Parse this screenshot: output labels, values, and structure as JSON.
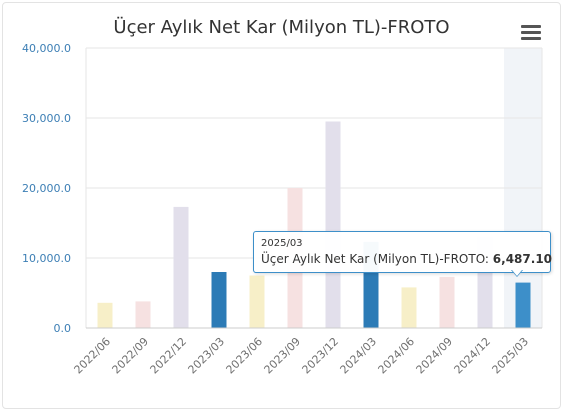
{
  "chart_data": {
    "type": "bar",
    "title": "Üçer Aylık Net Kar (Milyon TL)-FROTO",
    "categories": [
      "2022/06",
      "2022/09",
      "2022/12",
      "2023/03",
      "2023/06",
      "2023/09",
      "2023/12",
      "2024/03",
      "2024/06",
      "2024/09",
      "2024/12",
      "2025/03"
    ],
    "values": [
      3600,
      3800,
      17300,
      8000,
      7500,
      20000,
      29500,
      12300,
      5800,
      7300,
      13000,
      6487.1
    ],
    "ylim": [
      0,
      40000
    ],
    "yticks": [
      "0.0",
      "10,000.0",
      "20,000.0",
      "30,000.0",
      "40,000.0"
    ],
    "ytick_values": [
      0,
      10000,
      20000,
      30000,
      40000
    ],
    "bar_colors": [
      "#f7efc8",
      "#f6e1e1",
      "#e2dfeb",
      "#2c7bb6",
      "#f7efc8",
      "#f6e1e1",
      "#e2dfeb",
      "#2c7bb6",
      "#f7efc8",
      "#f6e1e1",
      "#e2dfeb",
      "#3d8fc9"
    ],
    "grid": true,
    "highlighted_index": 11,
    "highlight_band_color": "#f1f4f8"
  },
  "tooltip": {
    "date": "2025/03",
    "label": "Üçer Aylık Net Kar (Milyon TL)-FROTO:",
    "value": "6,487.10",
    "accent_color": "#3d8fc9"
  },
  "menu_icon": "hamburger-menu-icon",
  "colors": {
    "axis_label": "#3d7fb5",
    "tick_label": "#6f6f6f",
    "grid": "#e6e6e6"
  }
}
